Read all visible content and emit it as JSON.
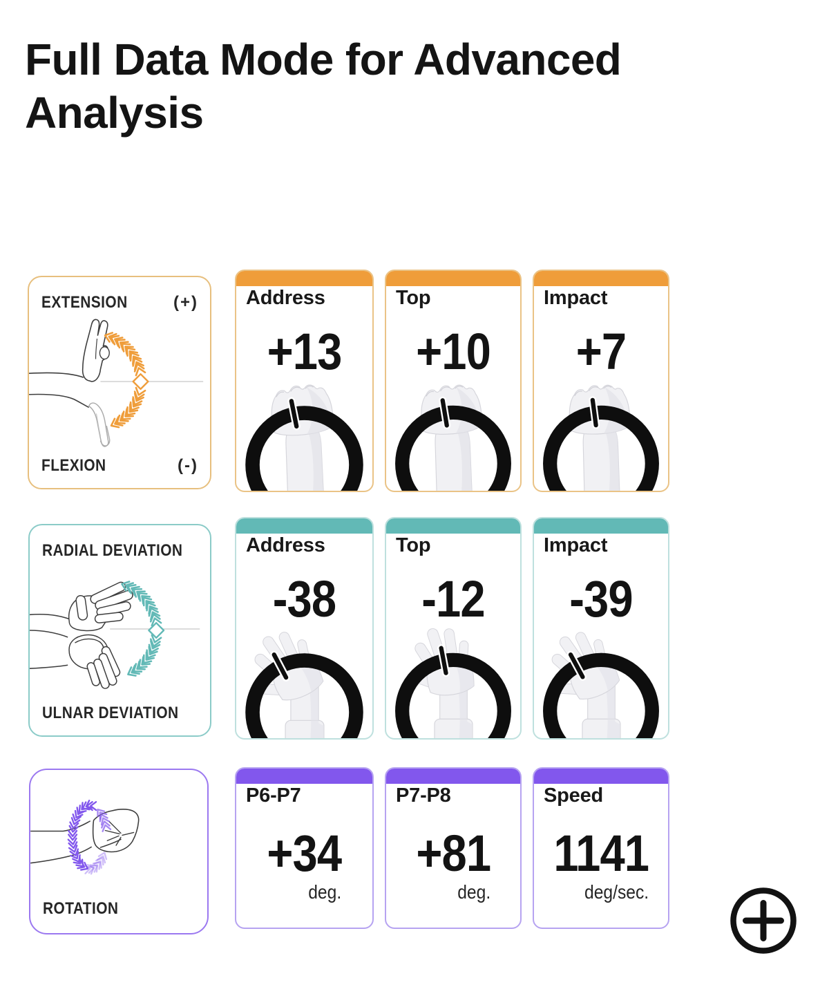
{
  "page": {
    "title": "Full Data Mode for Advanced Analysis",
    "background": "#ffffff"
  },
  "fab": {
    "symbol": "+",
    "color": "#121212"
  },
  "rows": [
    {
      "id": "flexion-extension",
      "accent": "#EF9D3A",
      "card_border": "#EAC386",
      "legend_border": "#E7BF7E",
      "gauge_hand": "fist",
      "legend": {
        "top_label": "EXTENSION",
        "top_sign": "(+)",
        "bottom_label": "FLEXION",
        "bottom_sign": "(-)",
        "art": "flexion-extension-hand-diagram"
      },
      "cards": [
        {
          "label": "Address",
          "value": "+13",
          "num": 13
        },
        {
          "label": "Top",
          "value": "+10",
          "num": 10
        },
        {
          "label": "Impact",
          "value": "+7",
          "num": 7
        }
      ]
    },
    {
      "id": "radial-ulnar-deviation",
      "accent": "#62B9B6",
      "card_border": "#BEE0DE",
      "legend_border": "#8BCBC8",
      "gauge_hand": "open",
      "legend": {
        "top_label": "RADIAL DEVIATION",
        "top_sign": "",
        "bottom_label": "ULNAR DEVIATION",
        "bottom_sign": "",
        "art": "radial-ulnar-deviation-hand-diagram"
      },
      "cards": [
        {
          "label": "Address",
          "value": "-38",
          "num": -38
        },
        {
          "label": "Top",
          "value": "-12",
          "num": -12
        },
        {
          "label": "Impact",
          "value": "-39",
          "num": -39
        }
      ]
    },
    {
      "id": "rotation",
      "accent": "#8257ED",
      "card_border": "#B6A3F1",
      "legend_border": "#9B78F0",
      "gauge_hand": "",
      "legend": {
        "top_label": "",
        "top_sign": "",
        "bottom_label": "ROTATION",
        "bottom_sign": "",
        "art": "rotation-fist-diagram"
      },
      "cards": [
        {
          "label": "P6-P7",
          "value": "+34",
          "unit": "deg."
        },
        {
          "label": "P7-P8",
          "value": "+81",
          "unit": "deg."
        },
        {
          "label": "Speed",
          "value": "1141",
          "unit": "deg/sec."
        }
      ]
    }
  ]
}
